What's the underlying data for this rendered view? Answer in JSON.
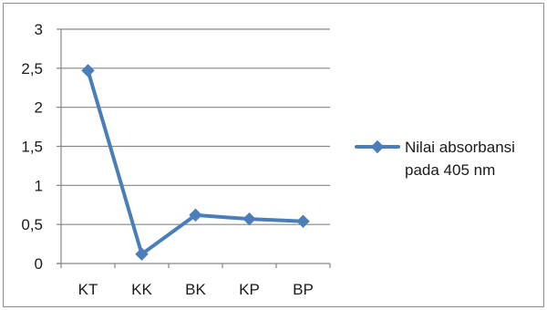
{
  "chart_data": {
    "type": "line",
    "categories": [
      "KT",
      "KK",
      "BK",
      "KP",
      "BP"
    ],
    "series": [
      {
        "name": "Nilai absorbansi pada 405 nm",
        "values": [
          2.47,
          0.12,
          0.62,
          0.57,
          0.54
        ],
        "color": "#4a7ebb"
      }
    ],
    "ylim": [
      0,
      3
    ],
    "y_ticks": [
      0,
      0.5,
      1,
      1.5,
      2,
      2.5,
      3
    ],
    "y_tick_labels": [
      "0",
      "0,5",
      "1",
      "1,5",
      "2",
      "2,5",
      "3"
    ],
    "grid": true,
    "marker": "diamond",
    "legend": {
      "position": "right",
      "lines": [
        "Nilai absorbansi",
        "pada 405 nm"
      ]
    },
    "title": "",
    "xlabel": "",
    "ylabel": ""
  }
}
